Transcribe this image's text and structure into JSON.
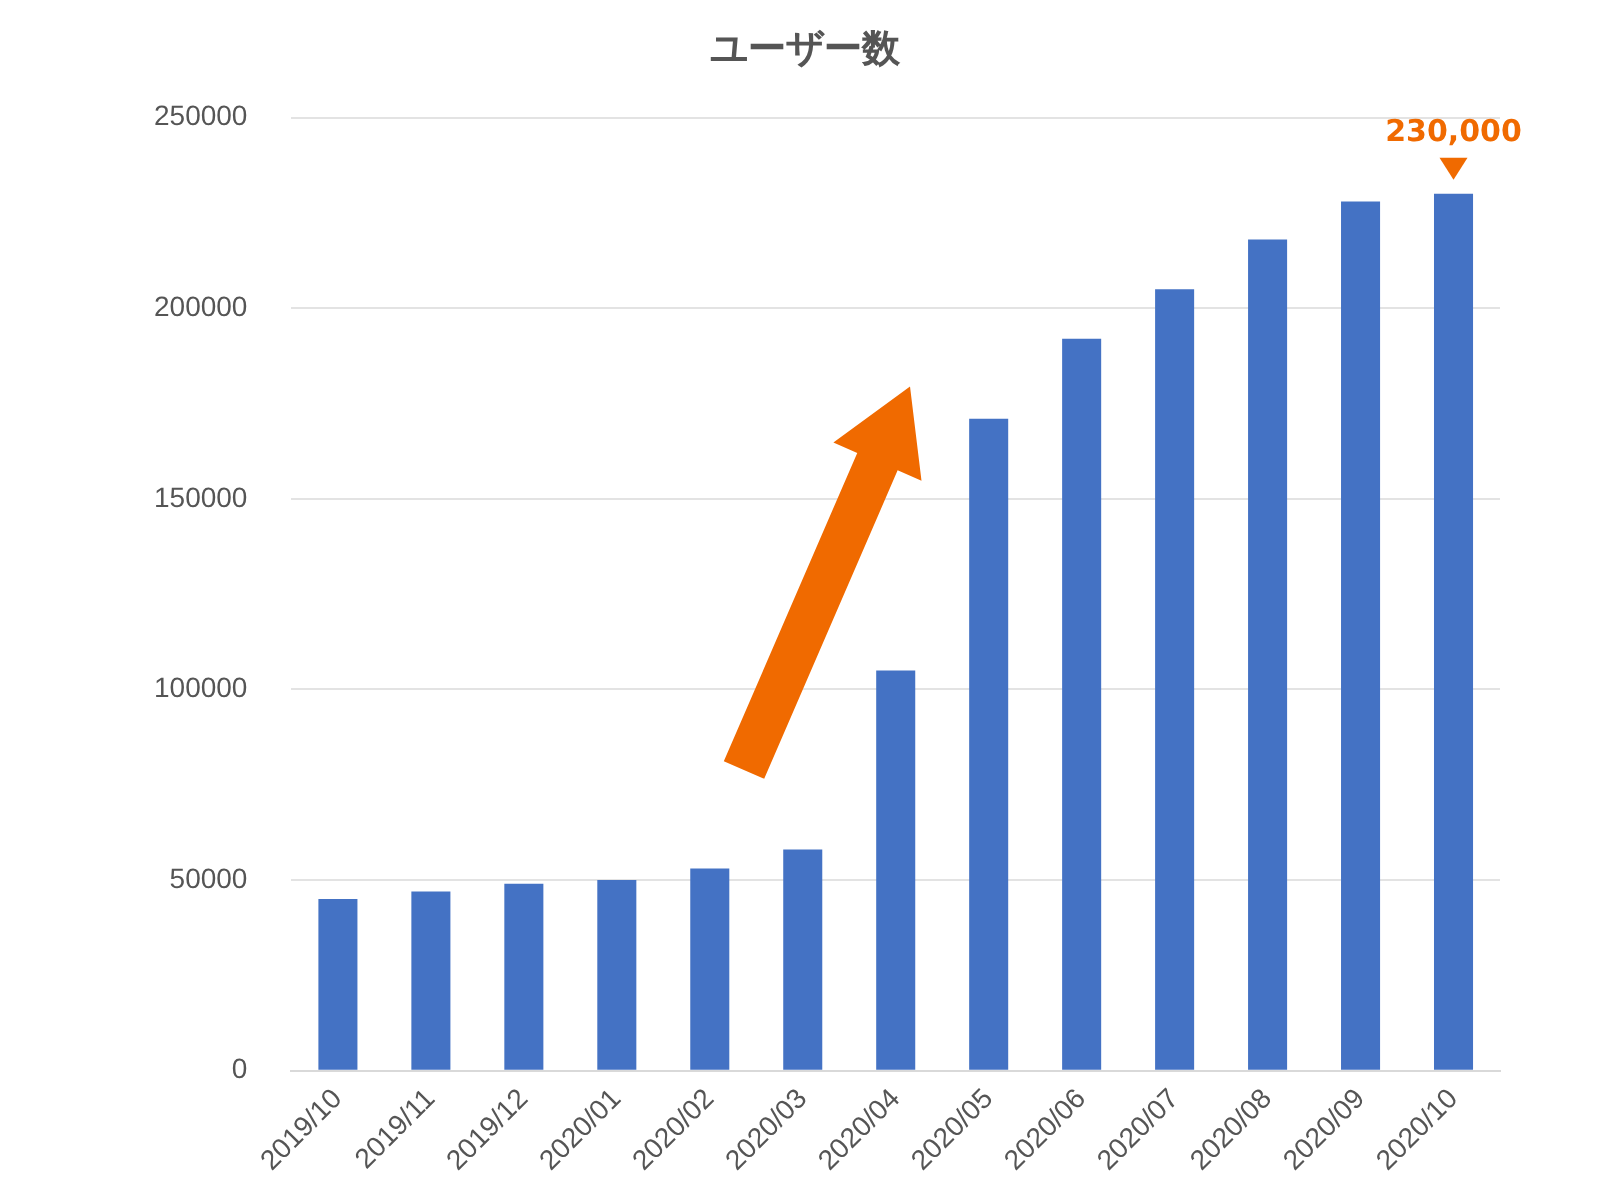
{
  "chart_data": {
    "type": "bar",
    "title": "ユーザー数",
    "categories": [
      "2019/10",
      "2019/11",
      "2019/12",
      "2020/01",
      "2020/02",
      "2020/03",
      "2020/04",
      "2020/05",
      "2020/06",
      "2020/07",
      "2020/08",
      "2020/09",
      "2020/10"
    ],
    "values": [
      45000,
      47000,
      49000,
      50000,
      53000,
      58000,
      105000,
      171000,
      192000,
      205000,
      218000,
      228000,
      230000
    ],
    "value_labels": [
      null,
      null,
      null,
      null,
      null,
      null,
      null,
      null,
      null,
      null,
      null,
      null,
      "230,000"
    ],
    "color": "#4472c4",
    "ylim": [
      0,
      250000
    ],
    "yticks": [
      0,
      50000,
      100000,
      150000,
      200000,
      250000
    ],
    "grid": "y",
    "legend": false
  }
}
